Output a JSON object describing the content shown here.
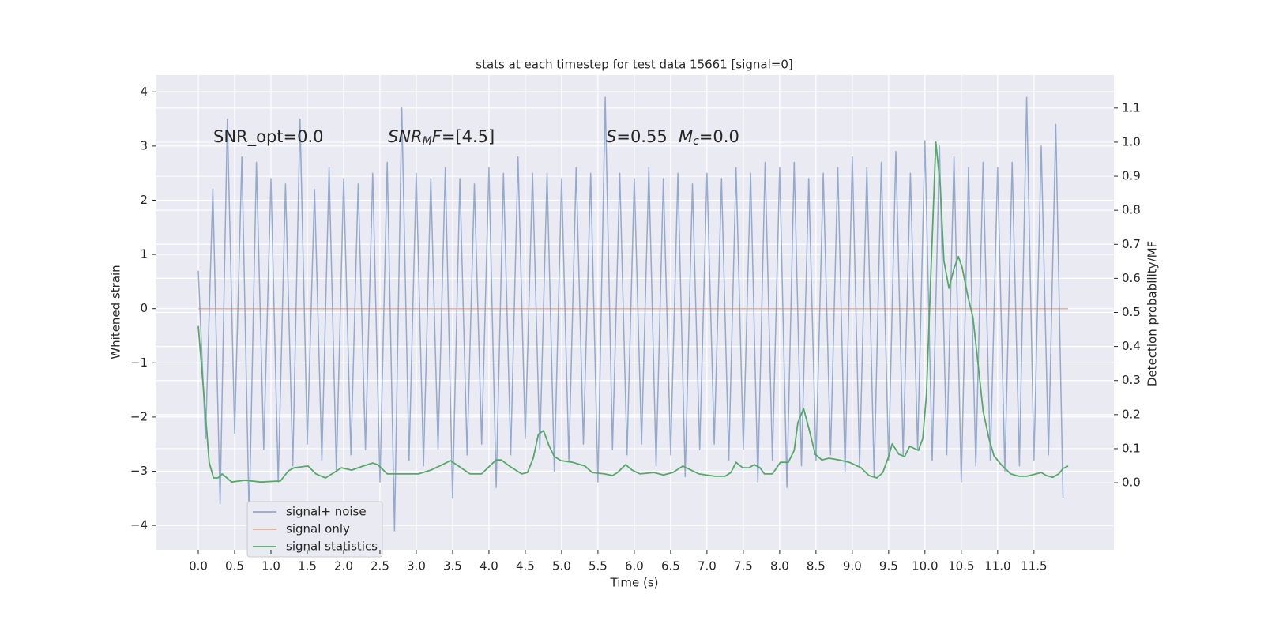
{
  "chart_data": {
    "type": "line",
    "title": "stats at each timestep for test data 15661 [signal=0]",
    "xlabel": "Time (s)",
    "ylabel": "Whitened strain",
    "y2label": "Detection probability/MF",
    "grid": true,
    "legend_loc": "lower left",
    "background": "#eaeaf2",
    "xlim": [
      -0.587,
      12.6
    ],
    "ylim": [
      -4.45,
      4.31
    ],
    "y2lim": [
      -0.197,
      1.197
    ],
    "xticks": [
      {
        "value": 0,
        "label": "0.0"
      },
      {
        "value": 0.5,
        "label": "0.5"
      },
      {
        "value": 1,
        "label": "1.0"
      },
      {
        "value": 1.5,
        "label": "1.5"
      },
      {
        "value": 2,
        "label": "2.0"
      },
      {
        "value": 2.5,
        "label": "2.5"
      },
      {
        "value": 3,
        "label": "3.0"
      },
      {
        "value": 3.5,
        "label": "3.5"
      },
      {
        "value": 4,
        "label": "4.0"
      },
      {
        "value": 4.5,
        "label": "4.5"
      },
      {
        "value": 5,
        "label": "5.0"
      },
      {
        "value": 5.5,
        "label": "5.5"
      },
      {
        "value": 6,
        "label": "6.0"
      },
      {
        "value": 6.5,
        "label": "6.5"
      },
      {
        "value": 7,
        "label": "7.0"
      },
      {
        "value": 7.5,
        "label": "7.5"
      },
      {
        "value": 8,
        "label": "8.0"
      },
      {
        "value": 8.5,
        "label": "8.5"
      },
      {
        "value": 9,
        "label": "9.0"
      },
      {
        "value": 9.5,
        "label": "9.5"
      },
      {
        "value": 10,
        "label": "10.0"
      },
      {
        "value": 10.5,
        "label": "10.5"
      },
      {
        "value": 11,
        "label": "11.0"
      },
      {
        "value": 11.5,
        "label": "11.5"
      }
    ],
    "yticks": [
      {
        "value": -4,
        "label": "−4"
      },
      {
        "value": -3,
        "label": "−3"
      },
      {
        "value": -2,
        "label": "−2"
      },
      {
        "value": -1,
        "label": "−1"
      },
      0,
      1,
      2,
      3,
      4
    ],
    "y2ticks": [
      {
        "value": 0,
        "label": "0.0"
      },
      {
        "value": 0.1,
        "label": "0.1"
      },
      {
        "value": 0.2,
        "label": "0.2"
      },
      {
        "value": 0.3,
        "label": "0.3"
      },
      {
        "value": 0.4,
        "label": "0.4"
      },
      {
        "value": 0.5,
        "label": "0.5"
      },
      {
        "value": 0.6,
        "label": "0.6"
      },
      {
        "value": 0.7,
        "label": "0.7"
      },
      {
        "value": 0.8,
        "label": "0.8"
      },
      {
        "value": 0.9,
        "label": "0.9"
      },
      {
        "value": 1,
        "label": "1.0"
      },
      {
        "value": 1.1,
        "label": "1.1"
      }
    ],
    "annotations": [
      {
        "text": "SNR_opt=0.0"
      },
      {
        "base": "SNR",
        "sub": "M",
        "base2": "F",
        "tail": "=[4.5]"
      },
      {
        "base": "S",
        "tail": "=0.55"
      },
      {
        "base": "M",
        "sub": "c",
        "tail": "=0.0"
      }
    ],
    "series": [
      {
        "name": "signal+ noise",
        "color": "#4c72b0",
        "alpha": 0.55,
        "x": [
          0,
          0.1,
          0.2,
          0.3,
          0.4,
          0.5,
          0.6,
          0.7,
          0.8,
          0.9,
          1,
          1.1,
          1.2,
          1.3,
          1.4,
          1.5,
          1.6,
          1.7,
          1.8,
          1.9,
          2,
          2.1,
          2.2,
          2.3,
          2.4,
          2.5,
          2.6,
          2.7,
          2.8,
          2.9,
          3,
          3.1,
          3.2,
          3.3,
          3.4,
          3.5,
          3.6,
          3.7,
          3.8,
          3.9,
          4,
          4.1,
          4.2,
          4.3,
          4.4,
          4.5,
          4.6,
          4.7,
          4.8,
          4.9,
          5,
          5.1,
          5.2,
          5.3,
          5.4,
          5.5,
          5.6,
          5.7,
          5.8,
          5.9,
          6,
          6.1,
          6.2,
          6.3,
          6.4,
          6.5,
          6.6,
          6.7,
          6.8,
          6.9,
          7,
          7.1,
          7.2,
          7.3,
          7.4,
          7.5,
          7.6,
          7.7,
          7.8,
          7.9,
          8,
          8.1,
          8.2,
          8.3,
          8.4,
          8.5,
          8.6,
          8.7,
          8.8,
          8.9,
          9,
          9.1,
          9.2,
          9.3,
          9.4,
          9.5,
          9.6,
          9.7,
          9.8,
          9.9,
          10,
          10.1,
          10.2,
          10.3,
          10.4,
          10.5,
          10.6,
          10.7,
          10.8,
          10.9,
          11,
          11.1,
          11.2,
          11.3,
          11.4,
          11.5,
          11.6,
          11.7,
          11.8,
          11.9
        ],
        "values": [
          0.7,
          -2.4,
          2.2,
          -3.6,
          3.5,
          -2.3,
          2.8,
          -3.9,
          2.7,
          -2.6,
          2.4,
          -3.2,
          2.3,
          -2.9,
          3.5,
          -2.5,
          2.2,
          -2.8,
          2.6,
          -3.0,
          2.4,
          -2.7,
          2.3,
          -2.6,
          2.5,
          -3.2,
          2.7,
          -4.1,
          3.7,
          -2.8,
          2.5,
          -2.9,
          2.4,
          -2.6,
          2.6,
          -3.5,
          2.4,
          -2.7,
          2.3,
          -2.5,
          2.6,
          -3.3,
          2.5,
          -2.7,
          2.8,
          -2.4,
          2.5,
          -2.6,
          2.5,
          -3.0,
          2.4,
          -2.8,
          2.6,
          -2.5,
          2.5,
          -3.2,
          3.9,
          -2.6,
          2.5,
          -2.7,
          2.4,
          -2.5,
          2.6,
          -2.9,
          2.4,
          -2.7,
          2.5,
          -3.1,
          2.3,
          -2.6,
          2.5,
          -2.5,
          2.4,
          -2.8,
          2.6,
          -2.6,
          2.5,
          -3.2,
          2.7,
          -2.8,
          2.6,
          -3.3,
          2.7,
          -2.9,
          2.4,
          -2.8,
          2.5,
          -2.7,
          2.6,
          -3.0,
          2.8,
          -2.9,
          2.6,
          -3.1,
          2.7,
          -2.8,
          2.9,
          -2.7,
          2.5,
          -2.6,
          3.1,
          -2.8,
          3.0,
          -2.7,
          2.8,
          -3.2,
          2.6,
          -2.9,
          2.7,
          -2.8,
          2.6,
          -3.0,
          2.7,
          -2.9,
          3.9,
          -2.8,
          3.0,
          -2.7,
          3.4,
          -3.5
        ]
      },
      {
        "name": "signal only",
        "color": "#dd8452",
        "alpha": 0.6,
        "x": [
          0,
          11.97
        ],
        "values": [
          0,
          0
        ]
      },
      {
        "name": "signal statistics",
        "color": "#55a868",
        "axis": "y2",
        "x": [
          0,
          0.08,
          0.15,
          0.21,
          0.27,
          0.33,
          0.46,
          0.64,
          0.86,
          1.13,
          1.24,
          1.32,
          1.51,
          1.62,
          1.75,
          1.84,
          1.97,
          2.11,
          2.27,
          2.4,
          2.47,
          2.6,
          2.82,
          3.03,
          3.2,
          3.36,
          3.47,
          3.58,
          3.74,
          3.9,
          4.01,
          4.1,
          4.17,
          4.28,
          4.45,
          4.53,
          4.61,
          4.68,
          4.75,
          4.83,
          4.9,
          4.99,
          5.15,
          5.32,
          5.42,
          5.59,
          5.7,
          5.77,
          5.88,
          5.97,
          6.08,
          6.27,
          6.4,
          6.53,
          6.67,
          6.78,
          6.89,
          7.11,
          7.25,
          7.33,
          7.4,
          7.49,
          7.58,
          7.65,
          7.73,
          7.79,
          7.9,
          8.01,
          8.12,
          8.2,
          8.25,
          8.33,
          8.41,
          8.49,
          8.58,
          8.68,
          8.82,
          8.96,
          9.12,
          9.23,
          9.34,
          9.42,
          9.5,
          9.55,
          9.64,
          9.72,
          9.79,
          9.86,
          9.91,
          9.97,
          10.02,
          10.08,
          10.15,
          10.21,
          10.26,
          10.33,
          10.4,
          10.46,
          10.51,
          10.59,
          10.66,
          10.73,
          10.8,
          10.88,
          10.95,
          11.05,
          11.18,
          11.29,
          11.4,
          11.53,
          11.6,
          11.67,
          11.76,
          11.84,
          11.9,
          11.97
        ],
        "values": [
          0.46,
          0.25,
          0.06,
          0.014,
          0.014,
          0.026,
          0.002,
          0.007,
          0.002,
          0.005,
          0.035,
          0.044,
          0.049,
          0.026,
          0.014,
          0.026,
          0.044,
          0.037,
          0.049,
          0.058,
          0.053,
          0.026,
          0.026,
          0.026,
          0.037,
          0.053,
          0.065,
          0.049,
          0.026,
          0.026,
          0.049,
          0.067,
          0.067,
          0.049,
          0.026,
          0.03,
          0.072,
          0.142,
          0.153,
          0.107,
          0.077,
          0.065,
          0.06,
          0.049,
          0.03,
          0.026,
          0.021,
          0.03,
          0.053,
          0.037,
          0.026,
          0.03,
          0.023,
          0.03,
          0.049,
          0.037,
          0.026,
          0.019,
          0.019,
          0.03,
          0.06,
          0.044,
          0.044,
          0.053,
          0.044,
          0.026,
          0.026,
          0.06,
          0.06,
          0.095,
          0.176,
          0.218,
          0.153,
          0.084,
          0.067,
          0.072,
          0.067,
          0.06,
          0.044,
          0.021,
          0.014,
          0.03,
          0.077,
          0.114,
          0.084,
          0.077,
          0.107,
          0.1,
          0.095,
          0.13,
          0.258,
          0.606,
          1.0,
          0.872,
          0.652,
          0.571,
          0.629,
          0.664,
          0.633,
          0.548,
          0.485,
          0.35,
          0.211,
          0.13,
          0.079,
          0.053,
          0.026,
          0.019,
          0.019,
          0.026,
          0.03,
          0.021,
          0.016,
          0.026,
          0.042,
          0.049
        ]
      }
    ]
  }
}
